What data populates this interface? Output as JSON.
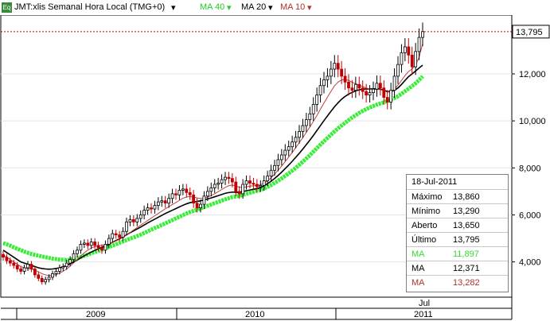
{
  "header": {
    "icon_label": "Eq",
    "symbol": "JMT:xlis Semanal Hora Local (TMG+0)",
    "ma40_label": "MA 40",
    "ma20_label": "MA 20",
    "ma10_label": "MA 10",
    "dropdown_icon": "triangle-down-icon"
  },
  "colors": {
    "background": "#ffffff",
    "up_candle": "#000000",
    "down_candle": "#c00000",
    "ma40": "#33ee33",
    "ma20": "#000000",
    "ma10": "#c04040",
    "last_price_line": "#c00000"
  },
  "info_box": {
    "date": "18-Jul-2011",
    "rows": [
      {
        "label": "Máximo",
        "value": "13,860",
        "color": "#000000"
      },
      {
        "label": "Mínimo",
        "value": "13,290",
        "color": "#000000"
      },
      {
        "label": "Aberto",
        "value": "13,650",
        "color": "#000000"
      },
      {
        "label": "Último",
        "value": "13,795",
        "color": "#000000"
      },
      {
        "label": "MA",
        "value": "11,897",
        "color": "#33ee33"
      },
      {
        "label": "MA",
        "value": "12,371",
        "color": "#000000"
      },
      {
        "label": "MA",
        "value": "13,282",
        "color": "#c04040"
      }
    ]
  },
  "chart_data": {
    "type": "candlestick",
    "x_labels": [
      "2009",
      "2010",
      "2011"
    ],
    "month_label": "Jul",
    "y_ticks": [
      "4,000",
      "6,000",
      "8,000",
      "10,000",
      "12,000"
    ],
    "y_tick_values": [
      4000,
      6000,
      8000,
      10000,
      12000
    ],
    "last_price": "13,795",
    "last_price_value": 13795,
    "ylim": [
      2500,
      14500
    ],
    "close_series": [
      4200,
      4050,
      3950,
      3850,
      3700,
      3600,
      3750,
      3900,
      3700,
      3450,
      3300,
      3150,
      3250,
      3350,
      3500,
      3600,
      3750,
      3800,
      3950,
      4100,
      4350,
      4500,
      4750,
      4800,
      4700,
      4850,
      4700,
      4600,
      4500,
      4750,
      5000,
      5200,
      5150,
      5050,
      5300,
      5700,
      5800,
      5700,
      5850,
      6000,
      6200,
      6300,
      6250,
      6400,
      6550,
      6600,
      6500,
      6700,
      6900,
      6850,
      7050,
      7100,
      6950,
      6850,
      6500,
      6300,
      6450,
      6800,
      7000,
      7150,
      7300,
      7350,
      7500,
      7600,
      7550,
      7400,
      7000,
      6900,
      7300,
      7450,
      7350,
      7300,
      7200,
      7250,
      7450,
      7650,
      7900,
      8100,
      8350,
      8550,
      8750,
      8900,
      9100,
      9300,
      9550,
      9800,
      10050,
      10300,
      10700,
      11100,
      11500,
      11750,
      11900,
      12200,
      12450,
      12200,
      11900,
      11650,
      11400,
      11300,
      11550,
      11400,
      11250,
      11100,
      11200,
      11350,
      11600,
      11400,
      11000,
      10800,
      11300,
      11900,
      12400,
      12900,
      13150,
      12800,
      12300,
      12950,
      13550,
      13800
    ],
    "ma40_series": [
      4800,
      4750,
      4690,
      4620,
      4560,
      4500,
      4440,
      4390,
      4340,
      4300,
      4270,
      4230,
      4200,
      4170,
      4140,
      4120,
      4100,
      4090,
      4080,
      4090,
      4120,
      4160,
      4210,
      4260,
      4310,
      4370,
      4420,
      4470,
      4520,
      4570,
      4630,
      4690,
      4750,
      4810,
      4870,
      4930,
      4990,
      5040,
      5100,
      5160,
      5230,
      5300,
      5370,
      5440,
      5500,
      5570,
      5640,
      5710,
      5780,
      5850,
      5920,
      5990,
      6060,
      6120,
      6170,
      6220,
      6280,
      6330,
      6390,
      6440,
      6500,
      6550,
      6610,
      6660,
      6710,
      6760,
      6780,
      6810,
      6850,
      6900,
      6940,
      6980,
      7020,
      7060,
      7120,
      7190,
      7270,
      7360,
      7450,
      7550,
      7660,
      7770,
      7880,
      8000,
      8130,
      8260,
      8400,
      8540,
      8690,
      8840,
      8990,
      9130,
      9270,
      9410,
      9550,
      9680,
      9800,
      9920,
      10030,
      10140,
      10240,
      10340,
      10420,
      10500,
      10570,
      10630,
      10690,
      10740,
      10790,
      10840,
      10900,
      10970,
      11050,
      11150,
      11260,
      11370,
      11480,
      11600,
      11740,
      11897
    ],
    "ma20_series": [
      4500,
      4400,
      4300,
      4200,
      4100,
      4000,
      3950,
      3900,
      3850,
      3800,
      3750,
      3720,
      3700,
      3690,
      3700,
      3720,
      3750,
      3790,
      3850,
      3920,
      4000,
      4080,
      4170,
      4260,
      4340,
      4420,
      4490,
      4560,
      4620,
      4680,
      4750,
      4830,
      4910,
      4980,
      5060,
      5150,
      5240,
      5320,
      5400,
      5480,
      5570,
      5660,
      5740,
      5820,
      5900,
      5980,
      6060,
      6130,
      6200,
      6270,
      6340,
      6410,
      6470,
      6520,
      6550,
      6570,
      6600,
      6640,
      6680,
      6720,
      6770,
      6820,
      6870,
      6920,
      6950,
      6970,
      6960,
      6960,
      6990,
      7030,
      7060,
      7090,
      7120,
      7160,
      7240,
      7330,
      7430,
      7550,
      7680,
      7820,
      7970,
      8120,
      8280,
      8450,
      8620,
      8800,
      8990,
      9180,
      9380,
      9590,
      9800,
      10010,
      10210,
      10410,
      10600,
      10770,
      10920,
      11040,
      11140,
      11210,
      11280,
      11320,
      11350,
      11360,
      11360,
      11360,
      11370,
      11350,
      11300,
      11250,
      11250,
      11300,
      11400,
      11550,
      11720,
      11880,
      12000,
      12120,
      12250,
      12371
    ],
    "ma10_series": [
      4300,
      4200,
      4100,
      4000,
      3900,
      3800,
      3750,
      3720,
      3700,
      3650,
      3580,
      3500,
      3450,
      3420,
      3430,
      3460,
      3520,
      3600,
      3700,
      3820,
      3960,
      4100,
      4250,
      4390,
      4500,
      4590,
      4650,
      4680,
      4700,
      4720,
      4760,
      4820,
      4890,
      4960,
      5040,
      5140,
      5250,
      5360,
      5460,
      5560,
      5660,
      5760,
      5860,
      5960,
      6060,
      6160,
      6260,
      6350,
      6440,
      6530,
      6620,
      6710,
      6760,
      6780,
      6760,
      6720,
      6700,
      6720,
      6760,
      6820,
      6900,
      6990,
      7080,
      7170,
      7240,
      7270,
      7230,
      7180,
      7170,
      7190,
      7220,
      7240,
      7260,
      7280,
      7350,
      7450,
      7580,
      7730,
      7900,
      8080,
      8270,
      8460,
      8660,
      8860,
      9070,
      9290,
      9510,
      9740,
      9980,
      10230,
      10500,
      10760,
      11010,
      11260,
      11490,
      11650,
      11740,
      11760,
      11720,
      11640,
      11580,
      11520,
      11460,
      11400,
      11350,
      11330,
      11340,
      11330,
      11280,
      11220,
      11240,
      11350,
      11520,
      11720,
      11930,
      12100,
      12210,
      12380,
      12700,
      13282
    ]
  }
}
